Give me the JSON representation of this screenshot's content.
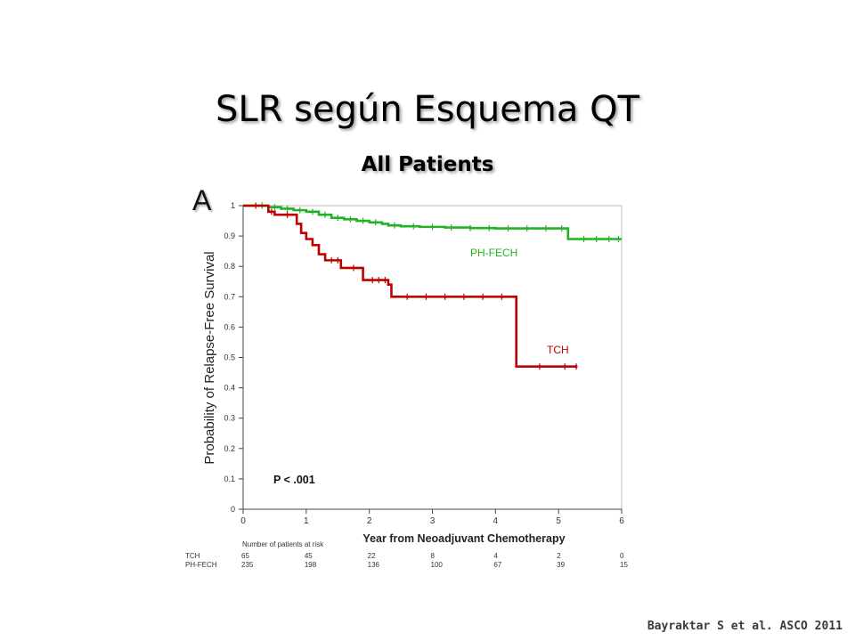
{
  "title": "SLR según Esquema QT",
  "subtitle": "All Patients",
  "panel_letter": "A",
  "citation": "Bayraktar S et al. ASCO 2011",
  "colors": {
    "PH-FECH": "#22b322",
    "TCH": "#c00000"
  },
  "chart_data": {
    "type": "line",
    "subtype": "kaplan-meier step",
    "xlabel": "Year from Neoadjuvant Chemotherapy",
    "ylabel": "Probability of Relapse-Free Survival",
    "xlim": [
      0,
      6
    ],
    "ylim": [
      0,
      1
    ],
    "x_ticks": [
      "0",
      "1",
      "2",
      "3",
      "4",
      "5",
      "6"
    ],
    "y_ticks": [
      "0",
      "0.1",
      "0.2",
      "0.3",
      "0.4",
      "0.5",
      "0.6",
      "0.7",
      "0.8",
      "0.9",
      "1"
    ],
    "grid": false,
    "annotation": "P < .001",
    "series": [
      {
        "name": "PH-FECH",
        "x": [
          0,
          0.4,
          0.6,
          0.8,
          1.0,
          1.2,
          1.4,
          1.6,
          1.8,
          2.0,
          2.2,
          2.3,
          2.5,
          2.8,
          3.2,
          3.6,
          4.0,
          4.5,
          5.0,
          5.15,
          5.3,
          6.0
        ],
        "y": [
          1.0,
          0.995,
          0.99,
          0.985,
          0.98,
          0.97,
          0.96,
          0.955,
          0.95,
          0.945,
          0.94,
          0.935,
          0.932,
          0.93,
          0.928,
          0.926,
          0.925,
          0.925,
          0.925,
          0.89,
          0.89,
          0.89
        ],
        "censor_x": [
          0.3,
          0.5,
          0.7,
          0.9,
          1.1,
          1.3,
          1.5,
          1.7,
          1.9,
          2.1,
          2.4,
          2.7,
          3.0,
          3.3,
          3.6,
          3.9,
          4.2,
          4.5,
          4.8,
          5.05,
          5.4,
          5.6,
          5.8,
          5.95
        ]
      },
      {
        "name": "TCH",
        "x": [
          0,
          0.4,
          0.5,
          0.85,
          0.92,
          1.0,
          1.1,
          1.2,
          1.3,
          1.55,
          1.9,
          2.3,
          2.35,
          4.33,
          5.3
        ],
        "y": [
          1.0,
          0.98,
          0.97,
          0.94,
          0.91,
          0.89,
          0.87,
          0.84,
          0.82,
          0.795,
          0.755,
          0.74,
          0.7,
          0.47,
          0.47
        ],
        "censor_x": [
          0.2,
          0.45,
          0.7,
          1.4,
          1.5,
          1.75,
          2.05,
          2.15,
          2.25,
          2.6,
          2.9,
          3.2,
          3.5,
          3.8,
          4.1,
          4.7,
          5.1,
          5.28
        ]
      }
    ],
    "series_labels": [
      "PH-FECH",
      "TCH"
    ],
    "risk_table": {
      "title": "Number of patients at risk",
      "rows": [
        {
          "name": "TCH",
          "values": [
            "65",
            "45",
            "22",
            "8",
            "4",
            "2",
            "0"
          ]
        },
        {
          "name": "PH-FECH",
          "values": [
            "235",
            "198",
            "136",
            "100",
            "67",
            "39",
            "15"
          ]
        }
      ]
    }
  }
}
